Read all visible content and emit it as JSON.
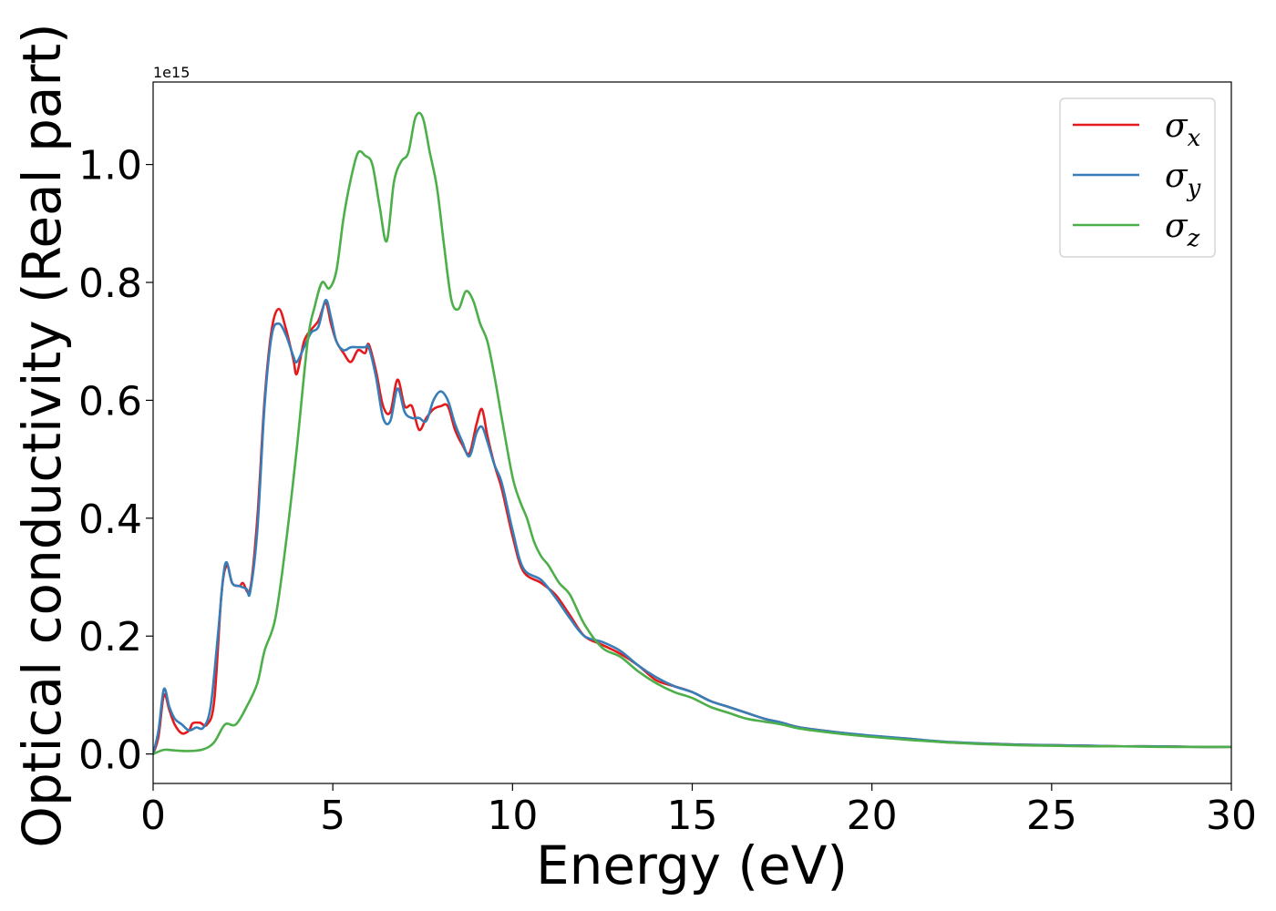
{
  "chart_data": {
    "type": "line",
    "xlabel": "Energy (eV)",
    "ylabel": "Optical conductivity (Real part)",
    "y_offset_text": "1e15",
    "xlim": [
      0,
      30
    ],
    "ylim": [
      -0.05,
      1.14
    ],
    "x_ticks": [
      0,
      5,
      10,
      15,
      20,
      25,
      30
    ],
    "x_tick_labels": [
      "0",
      "5",
      "10",
      "15",
      "20",
      "25",
      "30"
    ],
    "y_ticks": [
      0.0,
      0.2,
      0.4,
      0.6,
      0.8,
      1.0
    ],
    "y_tick_labels": [
      "0.0",
      "0.2",
      "0.4",
      "0.6",
      "0.8",
      "1.0"
    ],
    "grid": false,
    "legend_position": "top-right",
    "series": [
      {
        "name": "σx",
        "symbol": "σ",
        "subscript": "x",
        "color": "#e41a1c",
        "points": [
          [
            0,
            0
          ],
          [
            0.15,
            0.03
          ],
          [
            0.3,
            0.1
          ],
          [
            0.45,
            0.075
          ],
          [
            0.6,
            0.05
          ],
          [
            0.8,
            0.035
          ],
          [
            1.0,
            0.04
          ],
          [
            1.1,
            0.052
          ],
          [
            1.3,
            0.053
          ],
          [
            1.5,
            0.05
          ],
          [
            1.7,
            0.09
          ],
          [
            1.9,
            0.27
          ],
          [
            2.05,
            0.32
          ],
          [
            2.2,
            0.29
          ],
          [
            2.4,
            0.285
          ],
          [
            2.5,
            0.29
          ],
          [
            2.7,
            0.28
          ],
          [
            2.9,
            0.4
          ],
          [
            3.1,
            0.6
          ],
          [
            3.3,
            0.72
          ],
          [
            3.5,
            0.755
          ],
          [
            3.7,
            0.72
          ],
          [
            3.9,
            0.67
          ],
          [
            4.0,
            0.645
          ],
          [
            4.2,
            0.7
          ],
          [
            4.4,
            0.72
          ],
          [
            4.6,
            0.735
          ],
          [
            4.8,
            0.765
          ],
          [
            4.95,
            0.73
          ],
          [
            5.1,
            0.7
          ],
          [
            5.3,
            0.68
          ],
          [
            5.5,
            0.665
          ],
          [
            5.7,
            0.685
          ],
          [
            5.9,
            0.68
          ],
          [
            6.0,
            0.695
          ],
          [
            6.2,
            0.65
          ],
          [
            6.4,
            0.59
          ],
          [
            6.6,
            0.58
          ],
          [
            6.8,
            0.635
          ],
          [
            7.0,
            0.59
          ],
          [
            7.2,
            0.59
          ],
          [
            7.4,
            0.55
          ],
          [
            7.6,
            0.57
          ],
          [
            7.8,
            0.585
          ],
          [
            8.0,
            0.59
          ],
          [
            8.2,
            0.59
          ],
          [
            8.4,
            0.55
          ],
          [
            8.6,
            0.525
          ],
          [
            8.8,
            0.51
          ],
          [
            9.0,
            0.56
          ],
          [
            9.15,
            0.585
          ],
          [
            9.3,
            0.54
          ],
          [
            9.5,
            0.49
          ],
          [
            9.7,
            0.45
          ],
          [
            10.0,
            0.37
          ],
          [
            10.3,
            0.31
          ],
          [
            10.8,
            0.29
          ],
          [
            11.2,
            0.27
          ],
          [
            11.6,
            0.235
          ],
          [
            12.0,
            0.2
          ],
          [
            12.5,
            0.185
          ],
          [
            13.0,
            0.17
          ],
          [
            13.5,
            0.15
          ],
          [
            14.0,
            0.125
          ],
          [
            14.5,
            0.115
          ],
          [
            15.0,
            0.105
          ],
          [
            15.5,
            0.09
          ],
          [
            16.0,
            0.08
          ],
          [
            16.5,
            0.07
          ],
          [
            17.0,
            0.06
          ],
          [
            17.5,
            0.053
          ],
          [
            18.0,
            0.045
          ],
          [
            19.0,
            0.037
          ],
          [
            20.0,
            0.03
          ],
          [
            21.0,
            0.026
          ],
          [
            22.0,
            0.02
          ],
          [
            23.0,
            0.018
          ],
          [
            24.0,
            0.016
          ],
          [
            25.0,
            0.015
          ],
          [
            26.0,
            0.014
          ],
          [
            27.0,
            0.013
          ],
          [
            28.0,
            0.013
          ],
          [
            29.0,
            0.012
          ],
          [
            30.0,
            0.012
          ]
        ]
      },
      {
        "name": "σy",
        "symbol": "σ",
        "subscript": "y",
        "color": "#377eb8",
        "points": [
          [
            0,
            0
          ],
          [
            0.15,
            0.04
          ],
          [
            0.3,
            0.11
          ],
          [
            0.45,
            0.08
          ],
          [
            0.6,
            0.06
          ],
          [
            0.8,
            0.05
          ],
          [
            1.0,
            0.04
          ],
          [
            1.2,
            0.045
          ],
          [
            1.4,
            0.045
          ],
          [
            1.6,
            0.08
          ],
          [
            1.8,
            0.2
          ],
          [
            1.95,
            0.3
          ],
          [
            2.05,
            0.325
          ],
          [
            2.2,
            0.29
          ],
          [
            2.4,
            0.285
          ],
          [
            2.6,
            0.28
          ],
          [
            2.7,
            0.275
          ],
          [
            2.9,
            0.38
          ],
          [
            3.1,
            0.59
          ],
          [
            3.3,
            0.71
          ],
          [
            3.5,
            0.73
          ],
          [
            3.7,
            0.71
          ],
          [
            3.9,
            0.675
          ],
          [
            4.0,
            0.665
          ],
          [
            4.2,
            0.69
          ],
          [
            4.4,
            0.715
          ],
          [
            4.6,
            0.725
          ],
          [
            4.8,
            0.77
          ],
          [
            4.95,
            0.74
          ],
          [
            5.1,
            0.7
          ],
          [
            5.3,
            0.685
          ],
          [
            5.5,
            0.69
          ],
          [
            5.7,
            0.69
          ],
          [
            5.9,
            0.69
          ],
          [
            6.0,
            0.69
          ],
          [
            6.2,
            0.64
          ],
          [
            6.4,
            0.57
          ],
          [
            6.6,
            0.565
          ],
          [
            6.8,
            0.62
          ],
          [
            7.0,
            0.58
          ],
          [
            7.2,
            0.57
          ],
          [
            7.4,
            0.57
          ],
          [
            7.6,
            0.565
          ],
          [
            7.8,
            0.6
          ],
          [
            8.0,
            0.615
          ],
          [
            8.2,
            0.6
          ],
          [
            8.4,
            0.56
          ],
          [
            8.6,
            0.53
          ],
          [
            8.8,
            0.505
          ],
          [
            9.0,
            0.545
          ],
          [
            9.15,
            0.555
          ],
          [
            9.3,
            0.53
          ],
          [
            9.5,
            0.49
          ],
          [
            9.7,
            0.46
          ],
          [
            10.0,
            0.38
          ],
          [
            10.3,
            0.315
          ],
          [
            10.8,
            0.295
          ],
          [
            11.2,
            0.265
          ],
          [
            11.6,
            0.23
          ],
          [
            12.0,
            0.2
          ],
          [
            12.5,
            0.19
          ],
          [
            13.0,
            0.175
          ],
          [
            13.5,
            0.15
          ],
          [
            14.0,
            0.13
          ],
          [
            14.5,
            0.115
          ],
          [
            15.0,
            0.105
          ],
          [
            15.5,
            0.09
          ],
          [
            16.0,
            0.08
          ],
          [
            16.5,
            0.07
          ],
          [
            17.0,
            0.06
          ],
          [
            17.5,
            0.053
          ],
          [
            18.0,
            0.045
          ],
          [
            19.0,
            0.037
          ],
          [
            20.0,
            0.031
          ],
          [
            21.0,
            0.026
          ],
          [
            22.0,
            0.021
          ],
          [
            23.0,
            0.018
          ],
          [
            24.0,
            0.016
          ],
          [
            25.0,
            0.015
          ],
          [
            26.0,
            0.014
          ],
          [
            27.0,
            0.013
          ],
          [
            28.0,
            0.013
          ],
          [
            29.0,
            0.012
          ],
          [
            30.0,
            0.012
          ]
        ]
      },
      {
        "name": "σz",
        "symbol": "σ",
        "subscript": "z",
        "color": "#4daf4a",
        "points": [
          [
            0,
            0
          ],
          [
            0.3,
            0.007
          ],
          [
            0.6,
            0.006
          ],
          [
            1.0,
            0.005
          ],
          [
            1.4,
            0.008
          ],
          [
            1.7,
            0.02
          ],
          [
            2.0,
            0.05
          ],
          [
            2.3,
            0.05
          ],
          [
            2.6,
            0.08
          ],
          [
            2.9,
            0.12
          ],
          [
            3.1,
            0.175
          ],
          [
            3.4,
            0.23
          ],
          [
            3.7,
            0.36
          ],
          [
            4.0,
            0.52
          ],
          [
            4.3,
            0.7
          ],
          [
            4.5,
            0.76
          ],
          [
            4.7,
            0.8
          ],
          [
            4.9,
            0.79
          ],
          [
            5.1,
            0.82
          ],
          [
            5.3,
            0.91
          ],
          [
            5.5,
            0.975
          ],
          [
            5.7,
            1.02
          ],
          [
            5.9,
            1.015
          ],
          [
            6.1,
            1.0
          ],
          [
            6.3,
            0.93
          ],
          [
            6.5,
            0.87
          ],
          [
            6.7,
            0.97
          ],
          [
            6.9,
            1.005
          ],
          [
            7.1,
            1.02
          ],
          [
            7.3,
            1.08
          ],
          [
            7.5,
            1.08
          ],
          [
            7.7,
            1.02
          ],
          [
            7.9,
            0.96
          ],
          [
            8.1,
            0.86
          ],
          [
            8.3,
            0.77
          ],
          [
            8.5,
            0.755
          ],
          [
            8.7,
            0.785
          ],
          [
            8.9,
            0.77
          ],
          [
            9.1,
            0.73
          ],
          [
            9.3,
            0.7
          ],
          [
            9.5,
            0.64
          ],
          [
            9.7,
            0.57
          ],
          [
            10.0,
            0.47
          ],
          [
            10.2,
            0.43
          ],
          [
            10.4,
            0.4
          ],
          [
            10.6,
            0.36
          ],
          [
            10.8,
            0.335
          ],
          [
            11.0,
            0.32
          ],
          [
            11.3,
            0.29
          ],
          [
            11.6,
            0.27
          ],
          [
            12.0,
            0.22
          ],
          [
            12.5,
            0.18
          ],
          [
            13.0,
            0.165
          ],
          [
            13.5,
            0.14
          ],
          [
            14.0,
            0.12
          ],
          [
            14.5,
            0.105
          ],
          [
            15.0,
            0.095
          ],
          [
            15.5,
            0.08
          ],
          [
            16.0,
            0.07
          ],
          [
            16.5,
            0.06
          ],
          [
            17.0,
            0.055
          ],
          [
            17.5,
            0.05
          ],
          [
            18.0,
            0.043
          ],
          [
            19.0,
            0.035
          ],
          [
            20.0,
            0.029
          ],
          [
            21.0,
            0.024
          ],
          [
            22.0,
            0.02
          ],
          [
            23.0,
            0.017
          ],
          [
            24.0,
            0.015
          ],
          [
            25.0,
            0.014
          ],
          [
            26.0,
            0.013
          ],
          [
            27.0,
            0.013
          ],
          [
            28.0,
            0.012
          ],
          [
            29.0,
            0.012
          ],
          [
            30.0,
            0.012
          ]
        ]
      }
    ]
  }
}
